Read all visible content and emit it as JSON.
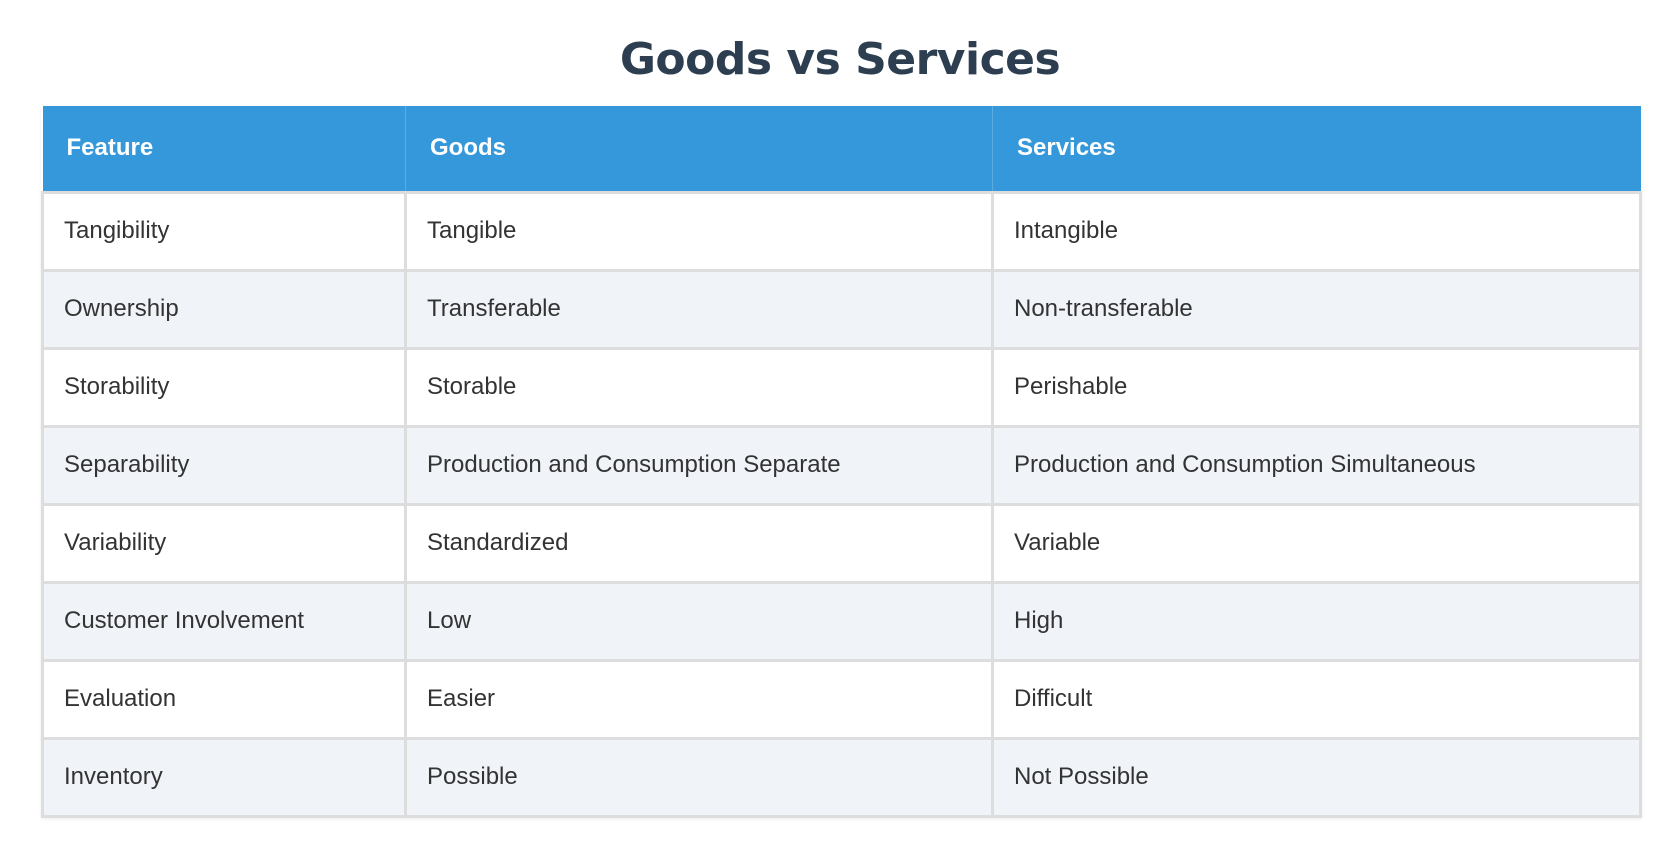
{
  "page": {
    "title": "Goods vs Services"
  },
  "table": {
    "columns": [
      "Feature",
      "Goods",
      "Services"
    ],
    "header_color": "#3498db",
    "stripe_color": "#f0f4f9",
    "rows": [
      {
        "feature": "Tangibility",
        "goods": "Tangible",
        "services": "Intangible"
      },
      {
        "feature": "Ownership",
        "goods": "Transferable",
        "services": "Non-transferable"
      },
      {
        "feature": "Storability",
        "goods": "Storable",
        "services": "Perishable"
      },
      {
        "feature": "Separability",
        "goods": "Production and Consumption Separate",
        "services": "Production and Consumption Simultaneous"
      },
      {
        "feature": "Variability",
        "goods": "Standardized",
        "services": "Variable"
      },
      {
        "feature": "Customer Involvement",
        "goods": "Low",
        "services": "High"
      },
      {
        "feature": "Evaluation",
        "goods": "Easier",
        "services": "Difficult"
      },
      {
        "feature": "Inventory",
        "goods": "Possible",
        "services": "Not Possible"
      }
    ]
  }
}
